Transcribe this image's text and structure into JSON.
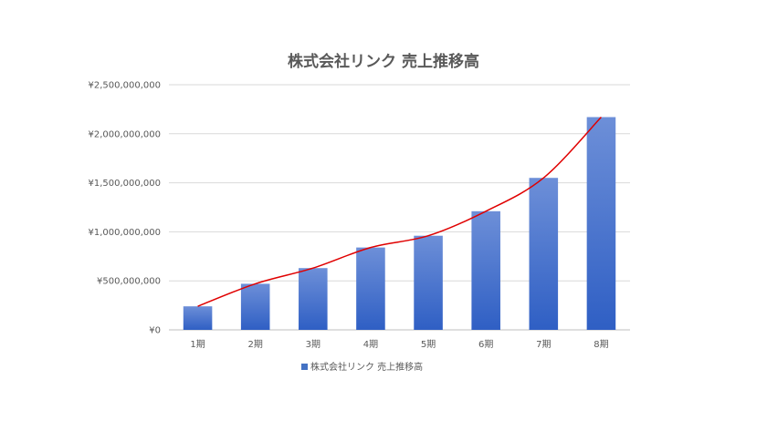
{
  "chart_data": {
    "type": "bar",
    "title": "株式会社リンク 売上推移高",
    "categories": [
      "1期",
      "2期",
      "3期",
      "4期",
      "5期",
      "6期",
      "7期",
      "8期"
    ],
    "series": [
      {
        "name": "株式会社リンク 売上推移高",
        "values": [
          240000000,
          470000000,
          630000000,
          840000000,
          960000000,
          1210000000,
          1550000000,
          2170000000
        ]
      }
    ],
    "trendline": {
      "type": "smooth",
      "color": "#e00000"
    },
    "ylim": [
      0,
      2500000000
    ],
    "yticks": [
      0,
      500000000,
      1000000000,
      1500000000,
      2000000000,
      2500000000
    ],
    "ytick_labels": [
      "¥0",
      "¥500,000,000",
      "¥1,000,000,000",
      "¥1,500,000,000",
      "¥2,000,000,000",
      "¥2,500,000,000"
    ],
    "xlabel": "",
    "ylabel": "",
    "grid": true,
    "legend_position": "bottom",
    "colors": {
      "bar_top": "#6d8fd8",
      "bar_bottom": "#2f5fc4",
      "grid": "#d9d9d9",
      "axis": "#bfbfbf",
      "legend_marker": "#4472c4"
    }
  }
}
